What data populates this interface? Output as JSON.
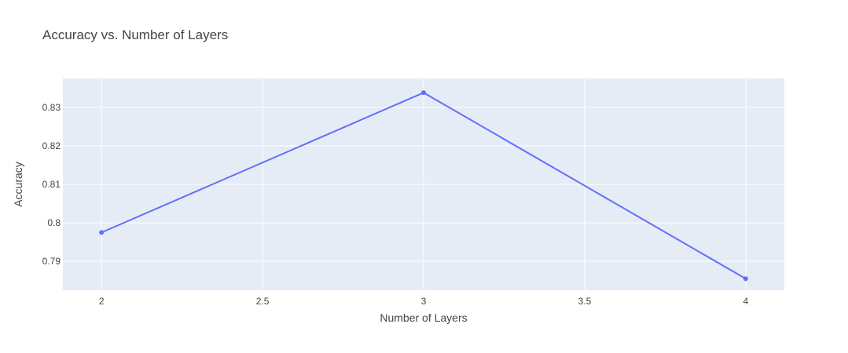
{
  "chart_data": {
    "type": "line",
    "title": "Accuracy vs. Number of Layers",
    "xlabel": "Number of Layers",
    "ylabel": "Accuracy",
    "x": [
      2,
      3,
      4
    ],
    "series": [
      {
        "values": [
          0.7975,
          0.8338,
          0.7855
        ]
      }
    ],
    "xlim": [
      1.88,
      4.12
    ],
    "ylim": [
      0.7825,
      0.8375
    ],
    "xticks": [
      2,
      2.5,
      3,
      3.5,
      4
    ],
    "xtick_labels": [
      "2",
      "2.5",
      "3",
      "3.5",
      "4"
    ],
    "yticks": [
      0.79,
      0.8,
      0.81,
      0.82,
      0.83
    ],
    "ytick_labels": [
      "0.79",
      "0.8",
      "0.81",
      "0.82",
      "0.83"
    ],
    "grid": true,
    "legend": "none",
    "colors": {
      "plot_background": "#e5ecf6",
      "grid": "#ffffff",
      "line": "#636efa",
      "text": "#444444"
    }
  }
}
